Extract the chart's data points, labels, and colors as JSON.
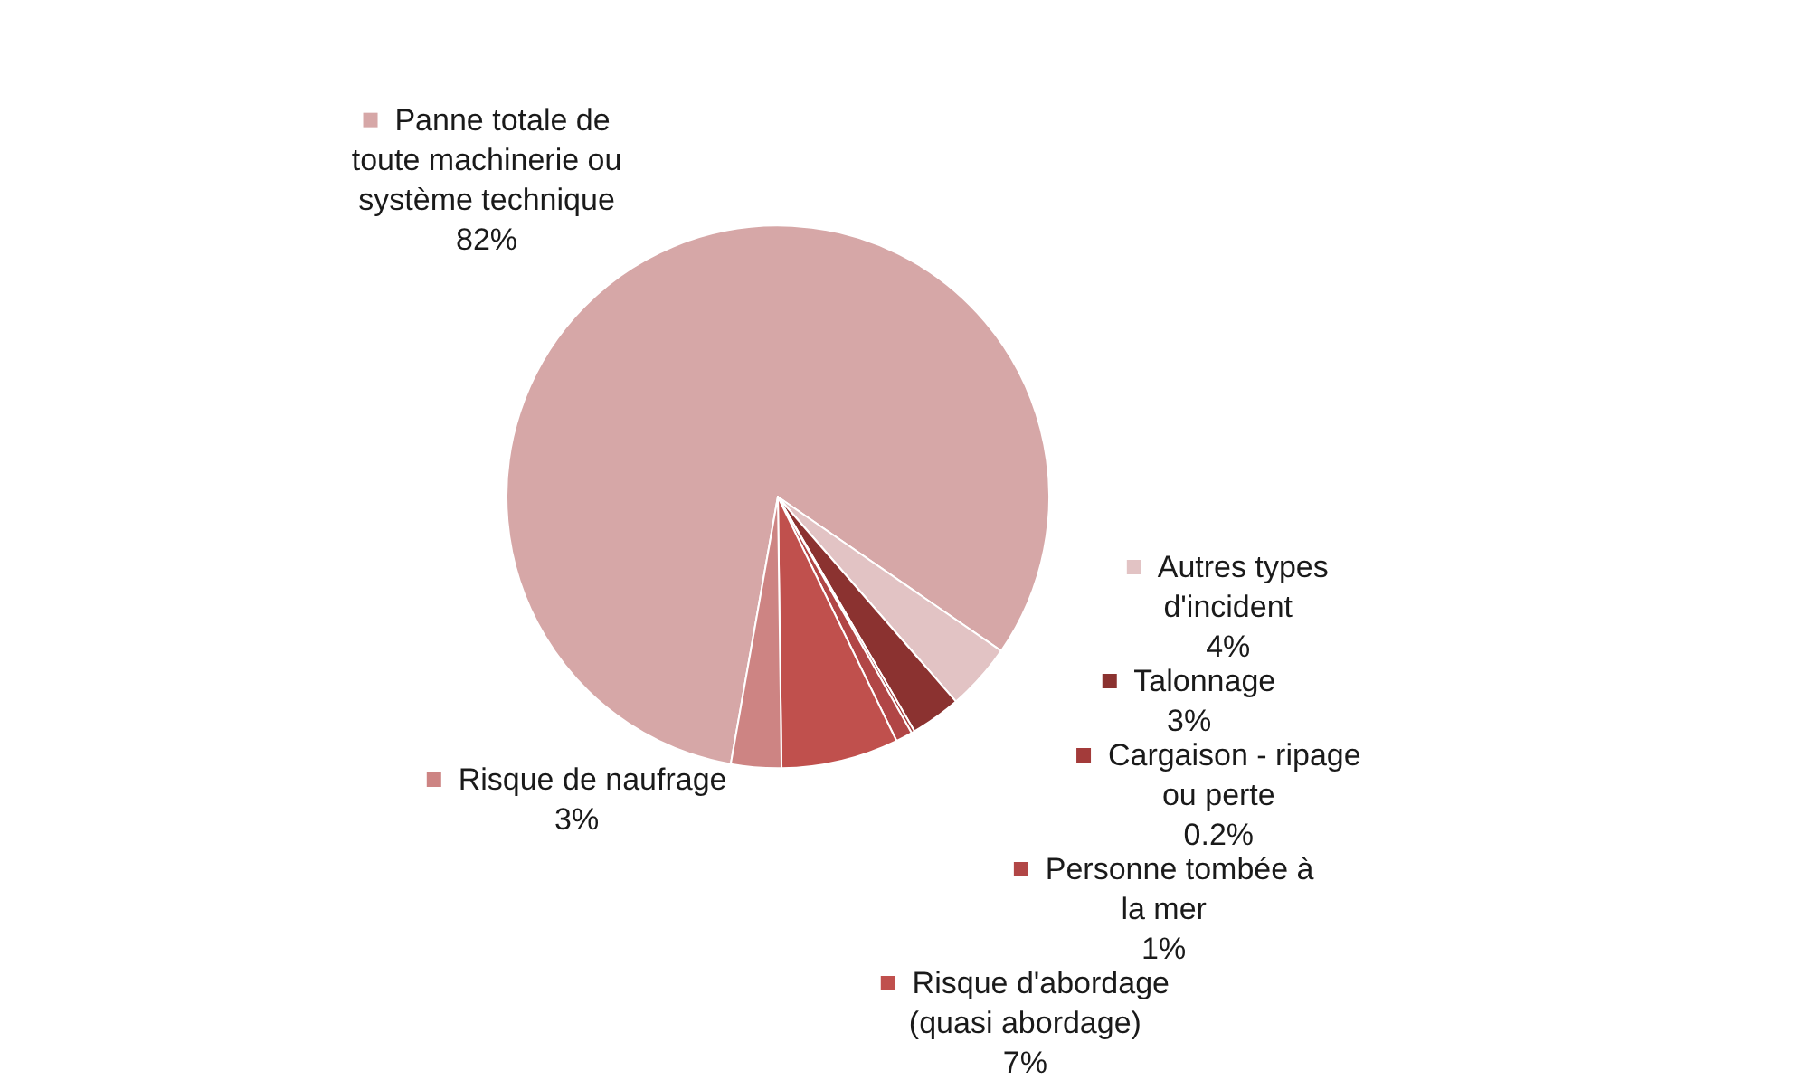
{
  "chart_data": {
    "type": "pie",
    "categories": [
      "Panne totale de toute machinerie ou système technique",
      "Autres types d'incident",
      "Talonnage",
      "Cargaison - ripage ou perte",
      "Personne tombée à la mer",
      "Risque d'abordage (quasi abordage)",
      "Risque de naufrage"
    ],
    "values": [
      82,
      4,
      3,
      0.2,
      1,
      7,
      3
    ],
    "value_labels": [
      "82%",
      "4%",
      "3%",
      "0.2%",
      "1%",
      "7%",
      "3%"
    ],
    "colors": [
      "#d6a7a7",
      "#e2c3c4",
      "#8b3230",
      "#a33b3a",
      "#b14646",
      "#c0504d",
      "#cd8483"
    ],
    "legend": "right"
  }
}
